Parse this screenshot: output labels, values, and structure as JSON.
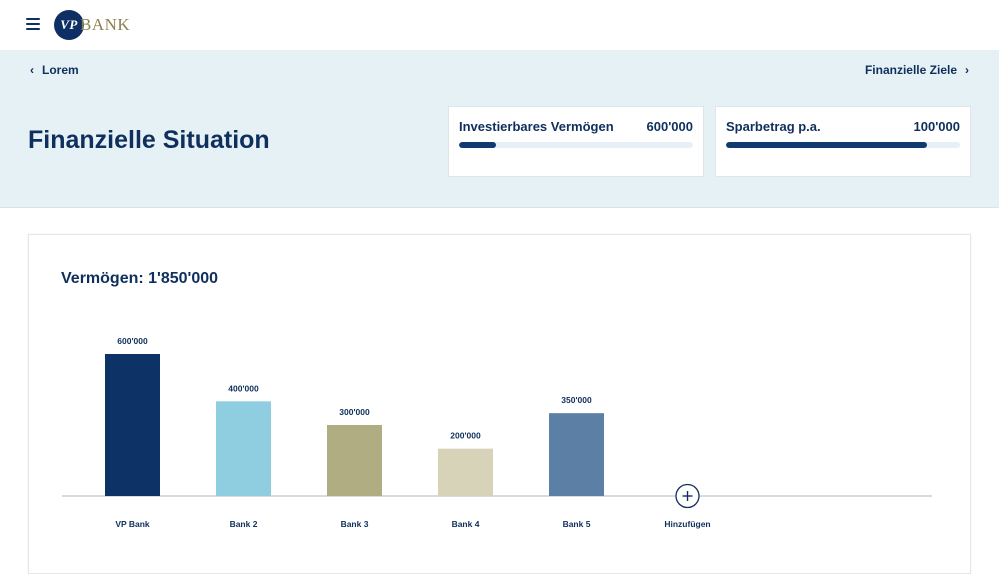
{
  "topbar": {
    "menu_icon": "hamburger-menu-icon",
    "logo": {
      "mark": "VP",
      "text": "BANK",
      "mark_color": "#0e2f63",
      "text_color": "#8b8252"
    }
  },
  "nav": {
    "back_label": "Lorem",
    "next_label": "Finanzielle Ziele"
  },
  "header": {
    "title": "Finanzielle Situation",
    "background": "#e6f1f6"
  },
  "cards": [
    {
      "label": "Investierbares Vermögen",
      "value": "600'000",
      "progress": 0.16
    },
    {
      "label": "Sparbetrag p.a.",
      "value": "100'000",
      "progress": 0.86
    }
  ],
  "panel": {
    "title": "Vermögen: 1'850'000",
    "add_label": "Hinzufügen"
  },
  "chart_data": {
    "type": "bar",
    "categories": [
      "VP Bank",
      "Bank 2",
      "Bank 3",
      "Bank 4",
      "Bank 5"
    ],
    "values": [
      600000,
      400000,
      300000,
      200000,
      350000
    ],
    "value_labels": [
      "600'000",
      "400'000",
      "300'000",
      "200'000",
      "350'000"
    ],
    "colors": [
      "#0d3366",
      "#8fcde0",
      "#b1ad83",
      "#d6d3b9",
      "#5c7fa5"
    ],
    "ylim": [
      0,
      600000
    ],
    "grid": false,
    "legend": "none"
  }
}
